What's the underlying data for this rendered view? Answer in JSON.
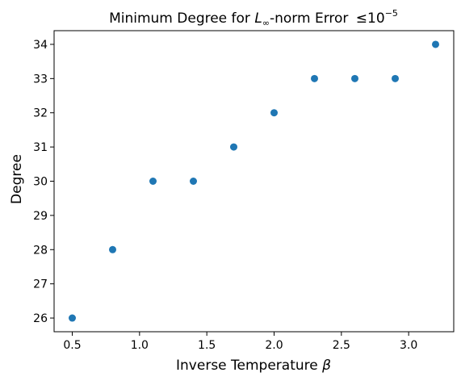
{
  "chart_data": {
    "type": "scatter",
    "title": {
      "prefix": "Minimum Degree for ",
      "norm_symbol": "L",
      "norm_subscript": "∞",
      "middle": "-norm Error ",
      "relation": "≤",
      "base": "10",
      "exponent": "−5"
    },
    "xlabel": {
      "text": "Inverse Temperature ",
      "symbol": "β"
    },
    "ylabel": "Degree",
    "x": [
      0.5,
      0.8,
      1.1,
      1.4,
      1.7,
      2.0,
      2.3,
      2.6,
      2.9,
      3.2
    ],
    "y": [
      26,
      28,
      30,
      30,
      31,
      32,
      33,
      33,
      33,
      34
    ],
    "xlim": [
      0.365,
      3.335
    ],
    "ylim": [
      25.6,
      34.4
    ],
    "xticks": [
      0.5,
      1.0,
      1.5,
      2.0,
      2.5,
      3.0
    ],
    "xtick_labels": [
      "0.5",
      "1.0",
      "1.5",
      "2.0",
      "2.5",
      "3.0"
    ],
    "yticks": [
      26,
      27,
      28,
      29,
      30,
      31,
      32,
      33,
      34
    ],
    "ytick_labels": [
      "26",
      "27",
      "28",
      "29",
      "30",
      "31",
      "32",
      "33",
      "34"
    ],
    "grid": false,
    "legend": "none",
    "marker_color": "#1f77b4"
  }
}
